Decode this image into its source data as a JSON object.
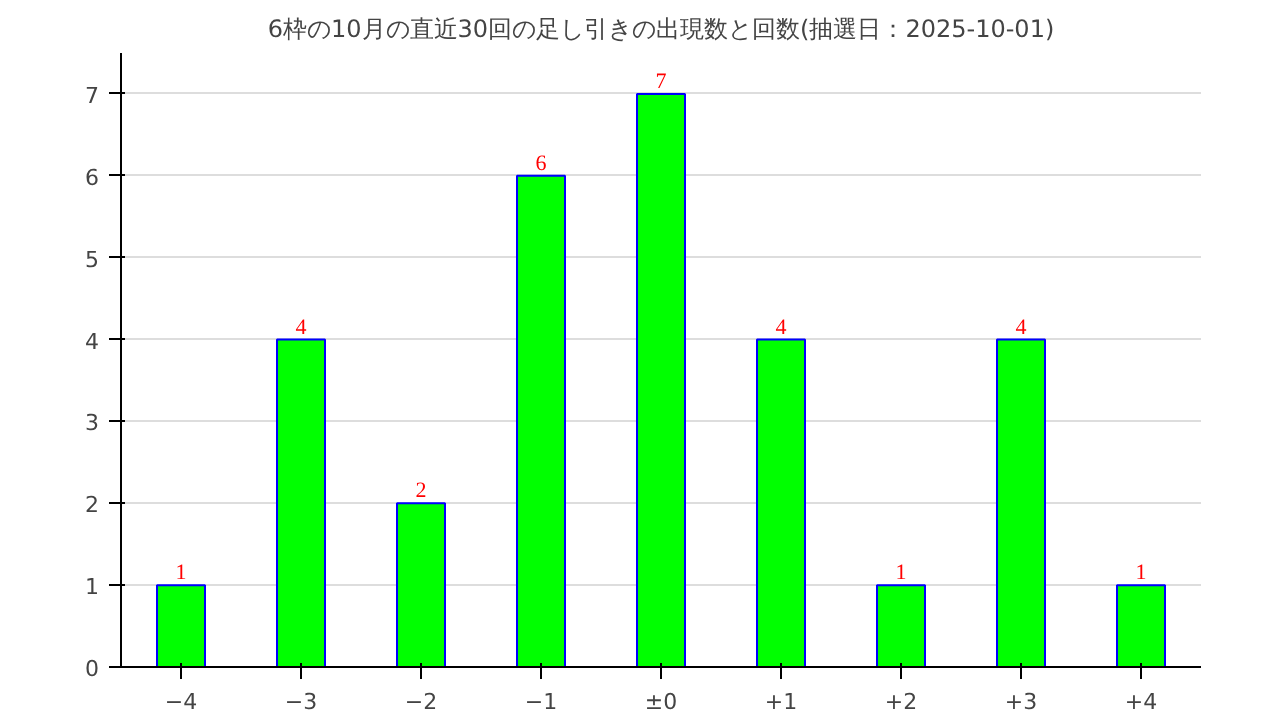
{
  "chart_data": {
    "type": "bar",
    "title": "6枠の10月の直近30回の足し引きの出現数と回数(抽選日：2025-10-01)",
    "categories": [
      "−4",
      "−3",
      "−2",
      "−1",
      "±0",
      "+1",
      "+2",
      "+3",
      "+4"
    ],
    "values": [
      1,
      4,
      2,
      6,
      7,
      4,
      1,
      4,
      1
    ],
    "color": "#00ff00",
    "data_labels": true,
    "ylim": [
      0,
      7.5
    ],
    "yticks": [
      0,
      1,
      2,
      3,
      4,
      5,
      6,
      7
    ],
    "grid": "y"
  }
}
